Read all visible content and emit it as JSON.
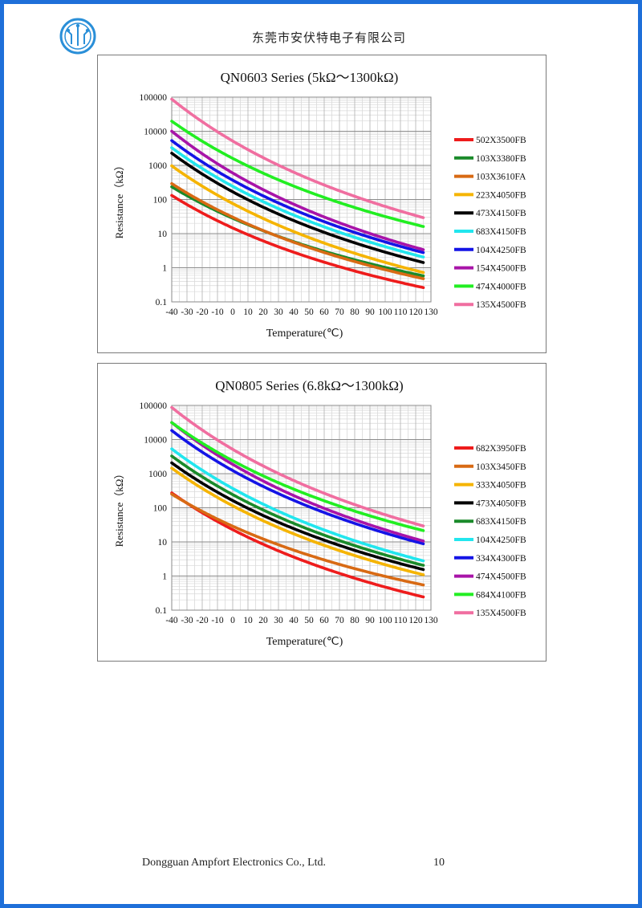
{
  "header": {
    "company": "东莞市安伏特电子有限公司"
  },
  "footer": {
    "company": "Dongguan Ampfort Electronics Co., Ltd.",
    "page_number": "10"
  },
  "chart_data": [
    {
      "type": "line",
      "title": "QN0603 Series (5kΩ～1300kΩ)",
      "xlabel": "Temperature(℃)",
      "ylabel": "Resistance（kΩ）",
      "y_scale": "log",
      "xlim": [
        -40,
        130
      ],
      "ylim": [
        0.1,
        100000
      ],
      "grid": true,
      "legend_position": "right",
      "x_ticks": [
        "-40",
        "-30",
        "-20",
        "-10",
        "0",
        "10",
        "20",
        "30",
        "40",
        "50",
        "60",
        "70",
        "80",
        "90",
        "100",
        "110",
        "120",
        "130"
      ],
      "y_ticks": [
        "100000",
        "10000",
        "1000",
        "100",
        "10",
        "1",
        "0.1"
      ],
      "series": [
        {
          "name": "502X3500FB",
          "r25": 5,
          "beta": 3500,
          "color": "#ee1c1c"
        },
        {
          "name": "103X3380FB",
          "r25": 10,
          "beta": 3380,
          "color": "#1a8a2a"
        },
        {
          "name": "103X3610FA",
          "r25": 10,
          "beta": 3610,
          "color": "#d86a14"
        },
        {
          "name": "223X4050FB",
          "r25": 22,
          "beta": 4050,
          "color": "#f5b400"
        },
        {
          "name": "473X4150FB",
          "r25": 47,
          "beta": 4150,
          "color": "#000000"
        },
        {
          "name": "683X4150FB",
          "r25": 68,
          "beta": 4150,
          "color": "#22e6ee"
        },
        {
          "name": "104X4250FB",
          "r25": 100,
          "beta": 4250,
          "color": "#1414e6"
        },
        {
          "name": "154X4500FB",
          "r25": 150,
          "beta": 4500,
          "color": "#a814a8"
        },
        {
          "name": "474X4000FB",
          "r25": 470,
          "beta": 4000,
          "color": "#22ee22"
        },
        {
          "name": "135X4500FB",
          "r25": 1300,
          "beta": 4500,
          "color": "#f06ea0"
        }
      ]
    },
    {
      "type": "line",
      "title": "QN0805 Series (6.8kΩ～1300kΩ)",
      "xlabel": "Temperature(℃)",
      "ylabel": "Resistance（kΩ）",
      "y_scale": "log",
      "xlim": [
        -40,
        130
      ],
      "ylim": [
        0.1,
        100000
      ],
      "grid": true,
      "legend_position": "right",
      "x_ticks": [
        "-40",
        "-30",
        "-20",
        "-10",
        "0",
        "10",
        "20",
        "30",
        "40",
        "50",
        "60",
        "70",
        "80",
        "90",
        "100",
        "110",
        "120",
        "130"
      ],
      "y_ticks": [
        "100000",
        "10000",
        "1000",
        "100",
        "10",
        "1",
        "0.1"
      ],
      "series": [
        {
          "name": "682X3950FB",
          "r25": 6.8,
          "beta": 3950,
          "color": "#ee1c1c"
        },
        {
          "name": "103X3450FB",
          "r25": 10,
          "beta": 3450,
          "color": "#d86a14"
        },
        {
          "name": "333X4050FB",
          "r25": 33,
          "beta": 4050,
          "color": "#f5b400"
        },
        {
          "name": "473X4050FB",
          "r25": 47,
          "beta": 4050,
          "color": "#000000"
        },
        {
          "name": "683X4150FB",
          "r25": 68,
          "beta": 4150,
          "color": "#1a8a2a"
        },
        {
          "name": "104X4250FB",
          "r25": 100,
          "beta": 4250,
          "color": "#22e6ee"
        },
        {
          "name": "334X4300FB",
          "r25": 330,
          "beta": 4300,
          "color": "#1414e6"
        },
        {
          "name": "474X4500FB",
          "r25": 470,
          "beta": 4500,
          "color": "#a814a8"
        },
        {
          "name": "684X4100FB",
          "r25": 680,
          "beta": 4100,
          "color": "#22ee22"
        },
        {
          "name": "135X4500FB",
          "r25": 1300,
          "beta": 4500,
          "color": "#f06ea0"
        }
      ]
    }
  ]
}
